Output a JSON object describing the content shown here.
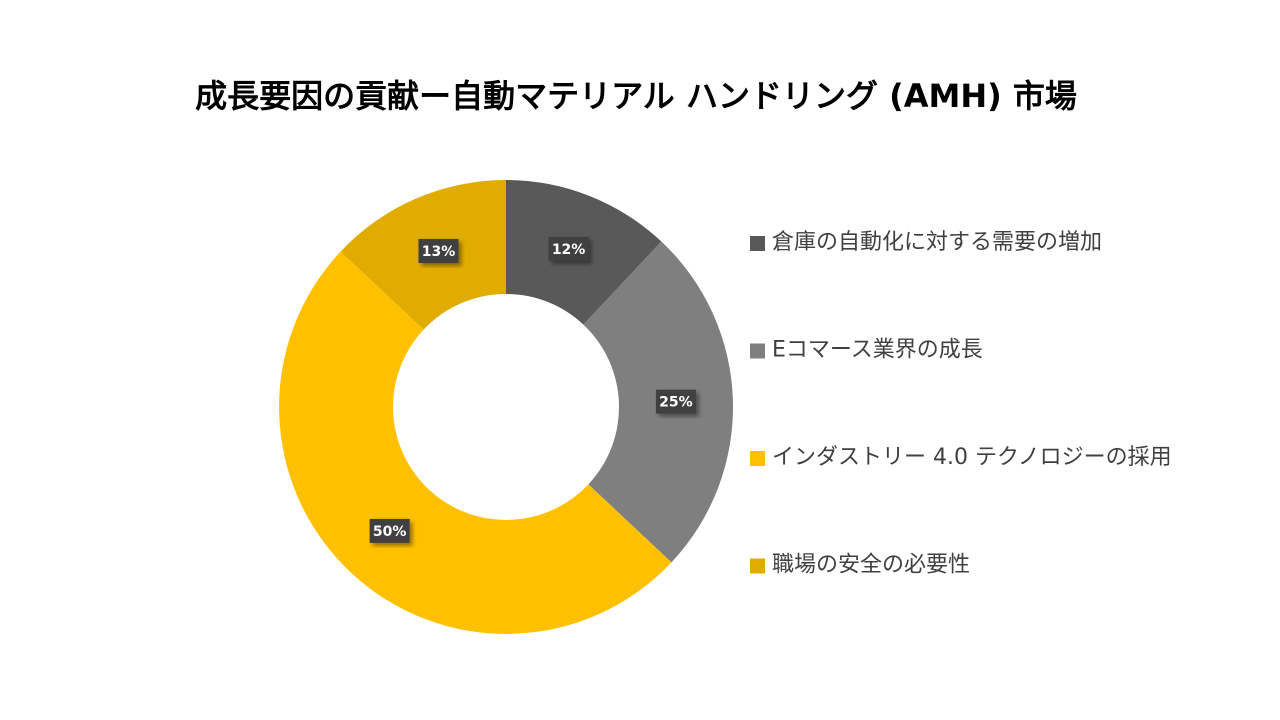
{
  "chart_data": {
    "type": "donut",
    "title": "成長要因の貢献ー自動マテリアル ハンドリング (AMH) 市場",
    "categories": [
      "倉庫の自動化に対する需要の増加",
      "Eコマース業界の成長",
      "インダストリー 4.0 テクノロジーの採用",
      "職場の安全の必要性"
    ],
    "values": [
      12,
      25,
      50,
      13
    ],
    "value_labels": [
      "12%",
      "25%",
      "50%",
      "13%"
    ],
    "colors": [
      "#595959",
      "#7f7f7f",
      "#ffc000",
      "#e0ac00"
    ],
    "legend": "right"
  }
}
